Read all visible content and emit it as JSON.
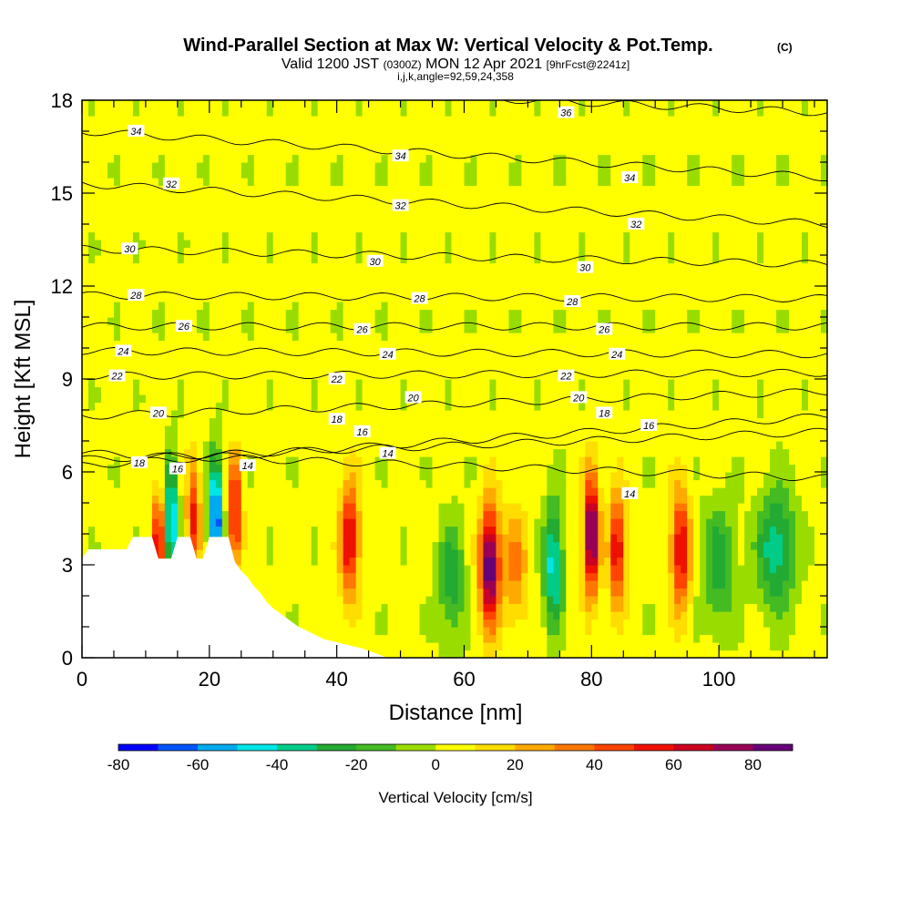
{
  "chart_data": {
    "type": "heatmap",
    "title": "Wind-Parallel Section at Max W: Vertical Velocity & Pot.Temp.",
    "title_mark": "(C)",
    "subtitle_parts": [
      "Valid 1200 JST",
      "(0300Z)",
      "MON 12 Apr 2021",
      "[9hrFcst@2241z]"
    ],
    "subtitle2": "i,j,k,angle=92,59,24,358",
    "xlabel": "Distance [nm]",
    "ylabel": "Height [Kft MSL]",
    "xlim": [
      0,
      117
    ],
    "ylim": [
      0,
      18
    ],
    "x_ticks": [
      0,
      20,
      40,
      60,
      80,
      100
    ],
    "x_tick_labels": [
      "0",
      "20",
      "40",
      "60",
      "80",
      "100"
    ],
    "y_ticks": [
      0,
      3,
      6,
      9,
      12,
      15,
      18
    ],
    "y_tick_labels": [
      "0",
      "3",
      "6",
      "9",
      "12",
      "15",
      "18"
    ],
    "colorbar": {
      "label": "Vertical Velocity [cm/s]",
      "levels": [
        -80,
        -70,
        -60,
        -50,
        -40,
        -30,
        -20,
        -10,
        0,
        10,
        20,
        30,
        40,
        50,
        60,
        70,
        80,
        90
      ],
      "tick_values": [
        -80,
        -60,
        -40,
        -20,
        0,
        20,
        40,
        60,
        80
      ],
      "tick_labels": [
        "-80",
        "-60",
        "-40",
        "-20",
        "0",
        "20",
        "40",
        "60",
        "80"
      ],
      "colors": [
        "#0000ff",
        "#0055ff",
        "#00aaee",
        "#00e6e6",
        "#00cc88",
        "#22aa33",
        "#44bb22",
        "#99dd00",
        "#ffff00",
        "#ffdd00",
        "#ffaa00",
        "#ff7700",
        "#ff4400",
        "#ee1100",
        "#cc0022",
        "#990055",
        "#660077"
      ]
    },
    "vertical_velocity_features": [
      {
        "x": 12,
        "z": 3.5,
        "w": 60,
        "width": 1.0
      },
      {
        "x": 14,
        "z": 4.5,
        "w": -60,
        "width": 1.0
      },
      {
        "x": 17.5,
        "z": 4.5,
        "w": 50,
        "width": 1.0
      },
      {
        "x": 21,
        "z": 4.5,
        "w": -80,
        "width": 1.0
      },
      {
        "x": 24,
        "z": 4.8,
        "w": 60,
        "width": 1.0
      },
      {
        "x": 42,
        "z": 3.8,
        "w": 60,
        "width": 1.5
      },
      {
        "x": 58,
        "z": 2.5,
        "w": -30,
        "width": 2.0
      },
      {
        "x": 64,
        "z": 3.0,
        "w": 90,
        "width": 1.5
      },
      {
        "x": 68,
        "z": 3.0,
        "w": 30,
        "width": 2.0
      },
      {
        "x": 74,
        "z": 3.0,
        "w": -50,
        "width": 1.5
      },
      {
        "x": 80,
        "z": 4.0,
        "w": 90,
        "width": 1.2
      },
      {
        "x": 84,
        "z": 3.5,
        "w": 60,
        "width": 1.2
      },
      {
        "x": 94,
        "z": 3.5,
        "w": 60,
        "width": 1.5
      },
      {
        "x": 100,
        "z": 3.0,
        "w": -30,
        "width": 2.5
      },
      {
        "x": 109,
        "z": 3.5,
        "w": -40,
        "width": 3.0
      }
    ],
    "theta_contours": [
      {
        "label": "14",
        "z0": 6.6,
        "z1": 5.8,
        "label_positions": [
          [
            26,
            6.2
          ],
          [
            48,
            6.6
          ],
          [
            86,
            5.3
          ]
        ]
      },
      {
        "label": "16",
        "z0": 6.4,
        "z1": 7.3,
        "label_positions": [
          [
            15,
            6.1
          ],
          [
            44,
            7.3
          ],
          [
            89,
            7.5
          ]
        ]
      },
      {
        "label": "18",
        "z0": 6.2,
        "z1": 7.8,
        "label_positions": [
          [
            9,
            6.3
          ],
          [
            40,
            7.7
          ],
          [
            82,
            7.9
          ]
        ]
      },
      {
        "label": "20",
        "z0": 7.8,
        "z1": 8.6,
        "label_positions": [
          [
            12,
            7.9
          ],
          [
            52,
            8.4
          ],
          [
            78,
            8.4
          ]
        ]
      },
      {
        "label": "22",
        "z0": 9.1,
        "z1": 9.2,
        "label_positions": [
          [
            5.5,
            9.1
          ],
          [
            40,
            9.0
          ],
          [
            76,
            9.1
          ]
        ]
      },
      {
        "label": "24",
        "z0": 9.9,
        "z1": 9.8,
        "label_positions": [
          [
            6.5,
            9.9
          ],
          [
            48,
            9.8
          ],
          [
            84,
            9.8
          ]
        ]
      },
      {
        "label": "26",
        "z0": 10.7,
        "z1": 10.7,
        "label_positions": [
          [
            16,
            10.7
          ],
          [
            44,
            10.6
          ],
          [
            82,
            10.6
          ]
        ]
      },
      {
        "label": "28",
        "z0": 11.7,
        "z1": 11.6,
        "label_positions": [
          [
            8.5,
            11.7
          ],
          [
            53,
            11.6
          ],
          [
            77,
            11.5
          ]
        ]
      },
      {
        "label": "30",
        "z0": 13.2,
        "z1": 12.7,
        "label_positions": [
          [
            7.5,
            13.2
          ],
          [
            46,
            12.8
          ],
          [
            79,
            12.6
          ]
        ]
      },
      {
        "label": "32",
        "z0": 15.3,
        "z1": 14.0,
        "label_positions": [
          [
            14,
            15.3
          ],
          [
            50,
            14.6
          ],
          [
            87,
            14.0
          ]
        ]
      },
      {
        "label": "34",
        "z0": 17.0,
        "z1": 15.5,
        "label_positions": [
          [
            8.5,
            17.0
          ],
          [
            50,
            16.2
          ],
          [
            86,
            15.5
          ]
        ]
      },
      {
        "label": "36",
        "z0": 18.6,
        "z1": 17.6,
        "label_positions": [
          [
            76,
            17.6
          ]
        ]
      }
    ],
    "terrain_profile": [
      [
        0,
        3.2
      ],
      [
        1,
        3.5
      ],
      [
        7,
        3.5
      ],
      [
        8,
        3.9
      ],
      [
        11,
        3.9
      ],
      [
        12,
        3.2
      ],
      [
        14,
        3.2
      ],
      [
        15,
        3.9
      ],
      [
        17,
        3.9
      ],
      [
        18,
        3.2
      ],
      [
        19,
        3.2
      ],
      [
        20,
        3.9
      ],
      [
        23,
        3.9
      ],
      [
        24,
        3.1
      ],
      [
        25,
        2.8
      ],
      [
        26,
        2.6
      ],
      [
        27,
        2.3
      ],
      [
        28,
        2.1
      ],
      [
        29,
        1.8
      ],
      [
        30,
        1.6
      ],
      [
        32,
        1.3
      ],
      [
        34,
        1.0
      ],
      [
        36,
        0.8
      ],
      [
        38,
        0.6
      ],
      [
        40,
        0.5
      ],
      [
        44,
        0.3
      ],
      [
        48,
        0.0
      ]
    ],
    "grid": false,
    "legend": "bottom"
  }
}
